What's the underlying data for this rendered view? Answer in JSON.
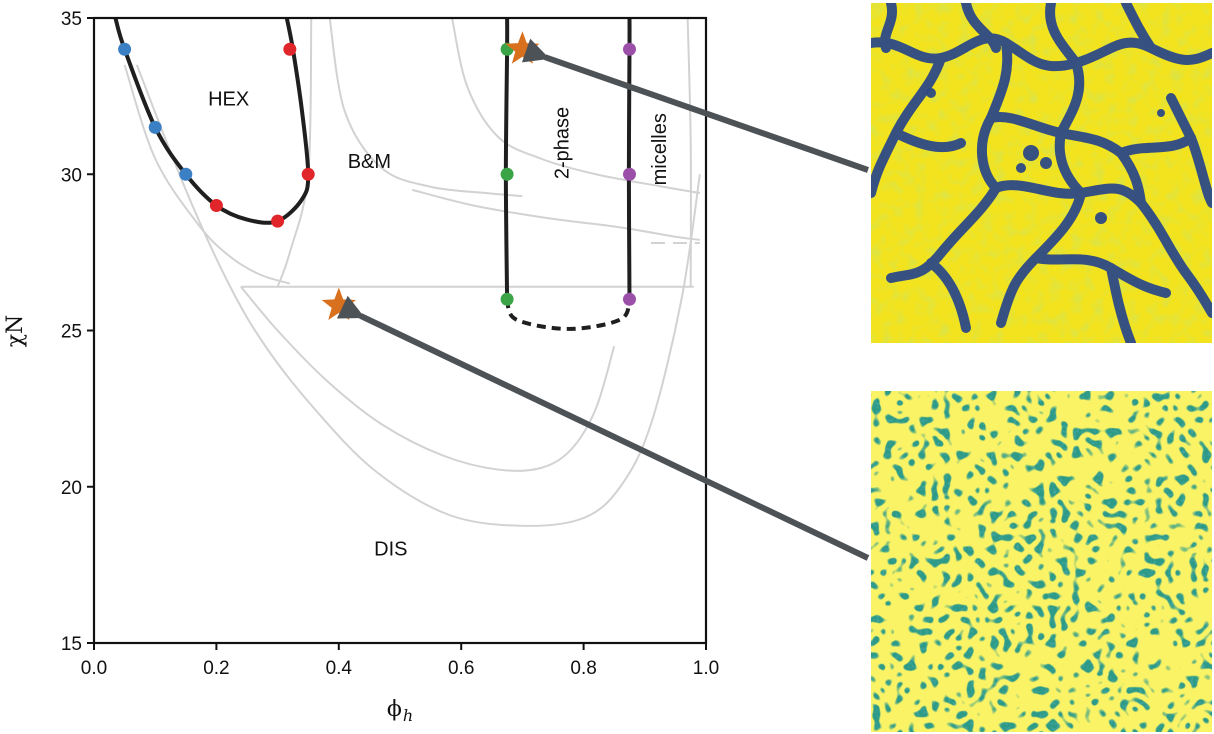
{
  "chart_data": {
    "type": "scatter",
    "title": "",
    "xlabel": "ϕ",
    "xlabel_subscript": "h",
    "ylabel": "χN",
    "xlim": [
      0.0,
      1.0
    ],
    "ylim": [
      15,
      35
    ],
    "xticks": [
      "0.0",
      "0.2",
      "0.4",
      "0.6",
      "0.8",
      "1.0"
    ],
    "xtick_values": [
      0.0,
      0.2,
      0.4,
      0.6,
      0.8,
      1.0
    ],
    "yticks": [
      "15",
      "20",
      "25",
      "30",
      "35"
    ],
    "ytick_values": [
      15,
      20,
      25,
      30,
      35
    ],
    "grid": false,
    "region_labels": [
      {
        "text": "HEX",
        "x": 0.22,
        "y": 32.2,
        "rotate": 0
      },
      {
        "text": "B&M",
        "x": 0.45,
        "y": 30.2,
        "rotate": 0
      },
      {
        "text": "DIS",
        "x": 0.485,
        "y": 17.8,
        "rotate": 0
      },
      {
        "text": "2-phase",
        "x": 0.775,
        "y": 31.0,
        "rotate": -90
      },
      {
        "text": "micelles",
        "x": 0.935,
        "y": 30.8,
        "rotate": -90
      }
    ],
    "series": [
      {
        "name": "HEX boundary (blue)",
        "color": "#3b7fc4",
        "x": [
          0.05,
          0.1,
          0.15
        ],
        "y": [
          34.0,
          31.5,
          30.0
        ]
      },
      {
        "name": "HEX boundary (red)",
        "color": "#e0262a",
        "x": [
          0.32,
          0.35,
          0.2,
          0.3
        ],
        "y": [
          34.0,
          30.0,
          29.0,
          28.5
        ]
      },
      {
        "name": "2-phase boundary (green)",
        "color": "#3aa447",
        "x": [
          0.675,
          0.675,
          0.675
        ],
        "y": [
          34.0,
          30.0,
          26.0
        ]
      },
      {
        "name": "micelles boundary (purple)",
        "color": "#9b4fa8",
        "x": [
          0.875,
          0.875,
          0.875
        ],
        "y": [
          34.0,
          30.0,
          26.0
        ]
      },
      {
        "name": "simulation points (stars)",
        "color": "#d9701e",
        "x": [
          0.7,
          0.4
        ],
        "y": [
          34.0,
          25.8
        ]
      }
    ],
    "boundaries": [
      {
        "name": "HEX phase boundary",
        "style": "solid-black",
        "x": [
          0.035,
          0.05,
          0.1,
          0.15,
          0.2,
          0.25,
          0.3,
          0.34,
          0.35,
          0.34,
          0.325,
          0.315
        ],
        "y": [
          35.0,
          34.0,
          31.5,
          30.0,
          29.0,
          28.55,
          28.5,
          29.2,
          30.0,
          32.0,
          34.0,
          35.0
        ]
      },
      {
        "name": "2-phase left boundary",
        "style": "solid-black",
        "x": [
          0.675,
          0.675,
          0.673,
          0.675
        ],
        "y": [
          35.0,
          34.0,
          30.0,
          26.0
        ]
      },
      {
        "name": "micelles boundary",
        "style": "solid-black",
        "x": [
          0.875,
          0.875,
          0.874,
          0.875
        ],
        "y": [
          35.0,
          34.0,
          30.0,
          26.0
        ]
      },
      {
        "name": "2-phase closure",
        "style": "dashed-black",
        "x": [
          0.675,
          0.69,
          0.775,
          0.86,
          0.875
        ],
        "y": [
          26.0,
          25.35,
          25.05,
          25.35,
          26.0
        ]
      },
      {
        "name": "gray reference: B&M / DIS line",
        "style": "solid-gray",
        "x": [
          0.24,
          0.98
        ],
        "y": [
          26.4,
          26.4
        ]
      },
      {
        "name": "gray reference: B&M left",
        "style": "solid-gray",
        "x": [
          0.355,
          0.35,
          0.32,
          0.3
        ],
        "y": [
          35.0,
          30.0,
          27.5,
          26.4
        ]
      },
      {
        "name": "gray reference: B&M middle",
        "style": "solid-gray",
        "x": [
          0.385,
          0.41,
          0.47,
          0.55,
          0.64,
          0.7
        ],
        "y": [
          35.0,
          32.0,
          30.2,
          29.6,
          29.4,
          29.3
        ]
      },
      {
        "name": "gray reference: upper right",
        "style": "solid-gray",
        "x": [
          0.585,
          0.61,
          0.66,
          0.73,
          0.82,
          0.93,
          0.99
        ],
        "y": [
          35.0,
          32.8,
          31.2,
          30.5,
          30.0,
          29.6,
          29.4
        ]
      },
      {
        "name": "gray reference: lower right",
        "style": "solid-gray",
        "x": [
          0.52,
          0.62,
          0.74,
          0.86,
          0.95,
          0.99
        ],
        "y": [
          29.5,
          29.0,
          28.6,
          28.3,
          28.0,
          27.9
        ]
      },
      {
        "name": "gray reference: DIS outer",
        "style": "solid-gray",
        "x": [
          0.07,
          0.15,
          0.22,
          0.28,
          0.36,
          0.46,
          0.58,
          0.7,
          0.8,
          0.86,
          0.91,
          0.96,
          0.99
        ],
        "y": [
          33.5,
          29.5,
          26.5,
          24.5,
          22.5,
          20.5,
          19.1,
          18.75,
          19.0,
          20.0,
          22.0,
          26.0,
          30.0
        ]
      },
      {
        "name": "gray reference: DIS inner",
        "style": "solid-gray",
        "x": [
          0.24,
          0.3,
          0.38,
          0.47,
          0.57,
          0.66,
          0.73,
          0.78,
          0.82,
          0.85
        ],
        "y": [
          26.4,
          25.0,
          23.4,
          22.0,
          21.0,
          20.55,
          20.6,
          21.2,
          22.5,
          24.5
        ]
      },
      {
        "name": "gray reference: HEX outer",
        "style": "solid-gray",
        "x": [
          0.05,
          0.1,
          0.17,
          0.22,
          0.27,
          0.32
        ],
        "y": [
          33.5,
          30.5,
          28.4,
          27.4,
          26.8,
          26.5
        ]
      },
      {
        "name": "gray reference: dashed extension",
        "style": "dashed-gray",
        "x": [
          0.91,
          0.99
        ],
        "y": [
          27.8,
          27.8
        ]
      },
      {
        "name": "gray reference: right inner",
        "style": "solid-gray",
        "x": [
          0.97,
          0.975,
          0.975
        ],
        "y": [
          35.0,
          31.0,
          26.4
        ]
      }
    ],
    "annotations": [
      {
        "type": "arrow",
        "from": "snapshot-top",
        "to_star": 0
      },
      {
        "type": "arrow",
        "from": "snapshot-bottom",
        "to_star": 1
      }
    ],
    "snapshots": [
      {
        "name": "top",
        "description_color": "yellow background with dark network"
      },
      {
        "name": "bottom",
        "description_color": "teal background with yellow domains"
      }
    ]
  }
}
